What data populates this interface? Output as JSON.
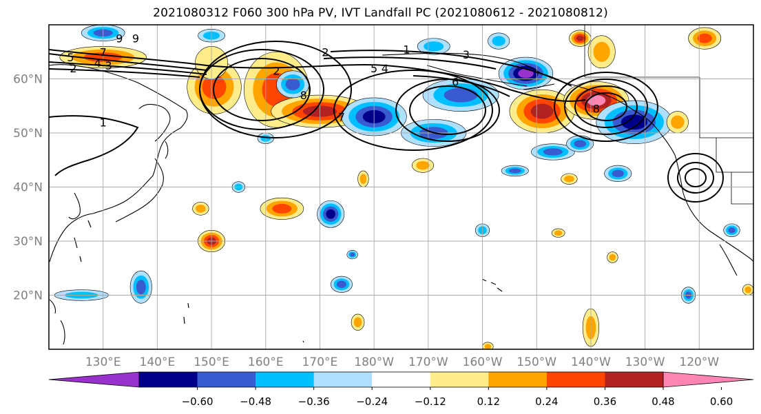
{
  "title": "2021080312 F060 300 hPa PV, IVT Landfall PC (2021080612 - 2021080812)",
  "map": {
    "lon_range": [
      120,
      250
    ],
    "lat_range": [
      10,
      70
    ],
    "gridlines": true,
    "lat_ticks": [
      {
        "lat": 60,
        "label": "60°N"
      },
      {
        "lat": 50,
        "label": "50°N"
      },
      {
        "lat": 40,
        "label": "40°N"
      },
      {
        "lat": 30,
        "label": "30°N"
      },
      {
        "lat": 20,
        "label": "20°N"
      }
    ],
    "lon_ticks": [
      {
        "lon": 130,
        "label": "130°E"
      },
      {
        "lon": 140,
        "label": "140°E"
      },
      {
        "lon": 150,
        "label": "150°E"
      },
      {
        "lon": 160,
        "label": "160°E"
      },
      {
        "lon": 170,
        "label": "170°E"
      },
      {
        "lon": 180,
        "label": "180°W"
      },
      {
        "lon": 190,
        "label": "170°W"
      },
      {
        "lon": 200,
        "label": "160°W"
      },
      {
        "lon": 210,
        "label": "150°W"
      },
      {
        "lon": 220,
        "label": "140°W"
      },
      {
        "lon": 230,
        "label": "130°W"
      },
      {
        "lon": 240,
        "label": "120°W"
      }
    ],
    "tick_label_color": "#808080"
  },
  "colorbar": {
    "bins": [
      "#9932cc",
      "#00008b",
      "#3a5bcf",
      "#00bfff",
      "#b0e0ff",
      "#ffffff",
      "#ffec8b",
      "#ffa500",
      "#ff4500",
      "#b22222",
      "#ff85b4"
    ],
    "tick_labels": [
      "−0.60",
      "−0.48",
      "−0.36",
      "−0.24",
      "−0.12",
      "0.12",
      "0.24",
      "0.36",
      "0.48",
      "0.60"
    ],
    "extend": "both"
  },
  "pv_anomalies": [
    {
      "lon": 150.5,
      "lat": 58.5,
      "rx": 5,
      "ry": 5,
      "level": 3
    },
    {
      "lon": 162,
      "lat": 58,
      "rx": 6,
      "ry": 7,
      "level": 3
    },
    {
      "lon": 170,
      "lat": 54,
      "rx": 9,
      "ry": 3,
      "level": 4
    },
    {
      "lon": 150,
      "lat": 63,
      "rx": 3,
      "ry": 3,
      "level": 1
    },
    {
      "lon": 165,
      "lat": 59,
      "rx": 3,
      "ry": 2.5,
      "level": -3
    },
    {
      "lon": 180,
      "lat": 53,
      "rx": 6,
      "ry": 3.5,
      "level": -4
    },
    {
      "lon": 191,
      "lat": 50,
      "rx": 6,
      "ry": 2.5,
      "level": -3
    },
    {
      "lon": 196,
      "lat": 57,
      "rx": 7,
      "ry": 3,
      "level": -3
    },
    {
      "lon": 208,
      "lat": 61,
      "rx": 5,
      "ry": 3,
      "level": -5
    },
    {
      "lon": 211,
      "lat": 54,
      "rx": 6,
      "ry": 4,
      "level": 4
    },
    {
      "lon": 221,
      "lat": 56,
      "rx": 6,
      "ry": 3.5,
      "level": 5
    },
    {
      "lon": 228,
      "lat": 52,
      "rx": 7,
      "ry": 4,
      "level": -4
    },
    {
      "lon": 236,
      "lat": 52,
      "rx": 2,
      "ry": 2,
      "level": 2
    },
    {
      "lon": 222,
      "lat": 65,
      "rx": 2.5,
      "ry": 3,
      "level": 2
    },
    {
      "lon": 191,
      "lat": 66,
      "rx": 3,
      "ry": 1.5,
      "level": -2
    },
    {
      "lon": 203,
      "lat": 67,
      "rx": 2,
      "ry": 1.5,
      "level": -2
    },
    {
      "lon": 130,
      "lat": 68.5,
      "rx": 4,
      "ry": 1.5,
      "level": -3
    },
    {
      "lon": 130,
      "lat": 64,
      "rx": 8,
      "ry": 2,
      "level": 3
    },
    {
      "lon": 150,
      "lat": 68,
      "rx": 2.5,
      "ry": 1.2,
      "level": -2
    },
    {
      "lon": 172,
      "lat": 35,
      "rx": 2.5,
      "ry": 2.5,
      "level": -4
    },
    {
      "lon": 163,
      "lat": 36,
      "rx": 4,
      "ry": 2,
      "level": 3
    },
    {
      "lon": 150,
      "lat": 30,
      "rx": 2.5,
      "ry": 2,
      "level": 4
    },
    {
      "lon": 137,
      "lat": 21.5,
      "rx": 2,
      "ry": 3,
      "level": -3
    },
    {
      "lon": 126,
      "lat": 20,
      "rx": 5,
      "ry": 1,
      "level": -2
    },
    {
      "lon": 174,
      "lat": 22,
      "rx": 2,
      "ry": 1.5,
      "level": -3
    },
    {
      "lon": 206,
      "lat": 43,
      "rx": 2.5,
      "ry": 1,
      "level": -3
    },
    {
      "lon": 213,
      "lat": 46.5,
      "rx": 4,
      "ry": 1.5,
      "level": -3
    },
    {
      "lon": 177,
      "lat": 15,
      "rx": 1.2,
      "ry": 1.5,
      "level": 2
    },
    {
      "lon": 148,
      "lat": 36,
      "rx": 1.5,
      "ry": 1.2,
      "level": 2
    },
    {
      "lon": 155,
      "lat": 40,
      "rx": 1.2,
      "ry": 1,
      "level": -2
    },
    {
      "lon": 189,
      "lat": 44,
      "rx": 2,
      "ry": 1.3,
      "level": 2
    },
    {
      "lon": 178,
      "lat": 41.5,
      "rx": 1,
      "ry": 1.5,
      "level": 2
    },
    {
      "lon": 225,
      "lat": 42.5,
      "rx": 2.5,
      "ry": 1.5,
      "level": -3
    },
    {
      "lon": 220,
      "lat": 14,
      "rx": 1.5,
      "ry": 3.5,
      "level": 2
    },
    {
      "lon": 216,
      "lat": 41.5,
      "rx": 1.5,
      "ry": 1,
      "level": 2
    },
    {
      "lon": 218,
      "lat": 48,
      "rx": 2.5,
      "ry": 1.5,
      "level": -3
    },
    {
      "lon": 238,
      "lat": 20,
      "rx": 1.3,
      "ry": 1.5,
      "level": -3
    },
    {
      "lon": 200,
      "lat": 32,
      "rx": 1.3,
      "ry": 1.2,
      "level": -2
    },
    {
      "lon": 224,
      "lat": 27,
      "rx": 1,
      "ry": 1,
      "level": 2
    },
    {
      "lon": 246,
      "lat": 32,
      "rx": 1.5,
      "ry": 1.2,
      "level": -3
    },
    {
      "lon": 249,
      "lat": 21,
      "rx": 1,
      "ry": 1,
      "level": 2
    },
    {
      "lon": 241,
      "lat": 67.5,
      "rx": 3,
      "ry": 2,
      "level": 3
    },
    {
      "lon": 218,
      "lat": 67.5,
      "rx": 2,
      "ry": 1.5,
      "level": 4
    },
    {
      "lon": 160,
      "lat": 49,
      "rx": 1.5,
      "ry": 1,
      "level": -2
    },
    {
      "lon": 214,
      "lat": 31.5,
      "rx": 1.2,
      "ry": 0.8,
      "level": 2
    },
    {
      "lon": 201,
      "lat": 10.5,
      "rx": 1,
      "ry": 0.8,
      "level": 2
    },
    {
      "lon": 176,
      "lat": 27.5,
      "rx": 1,
      "ry": 0.8,
      "level": -3
    }
  ],
  "ivt_contours": [
    {
      "label": "1",
      "lon": 130,
      "lat": 52
    },
    {
      "label": "2",
      "lon": 124.5,
      "lat": 62
    },
    {
      "label": "3",
      "lon": 131,
      "lat": 62.5
    },
    {
      "label": "4",
      "lon": 129,
      "lat": 63
    },
    {
      "label": "5",
      "lon": 124,
      "lat": 64
    },
    {
      "label": "7",
      "lon": 130,
      "lat": 65
    },
    {
      "label": "9",
      "lon": 133,
      "lat": 67.5
    },
    {
      "label": "9",
      "lon": 136,
      "lat": 67.5
    },
    {
      "label": "2",
      "lon": 171,
      "lat": 65
    },
    {
      "label": "1",
      "lon": 186,
      "lat": 65.5
    },
    {
      "label": "3",
      "lon": 197,
      "lat": 64.5
    },
    {
      "label": "5",
      "lon": 180,
      "lat": 62
    },
    {
      "label": "4",
      "lon": 182,
      "lat": 62
    },
    {
      "label": "2",
      "lon": 162,
      "lat": 61.5
    },
    {
      "label": "6",
      "lon": 195,
      "lat": 59.5
    },
    {
      "label": "7",
      "lon": 174,
      "lat": 53
    },
    {
      "label": "8",
      "lon": 167,
      "lat": 57
    },
    {
      "label": "8",
      "lon": 221,
      "lat": 54.5
    }
  ]
}
